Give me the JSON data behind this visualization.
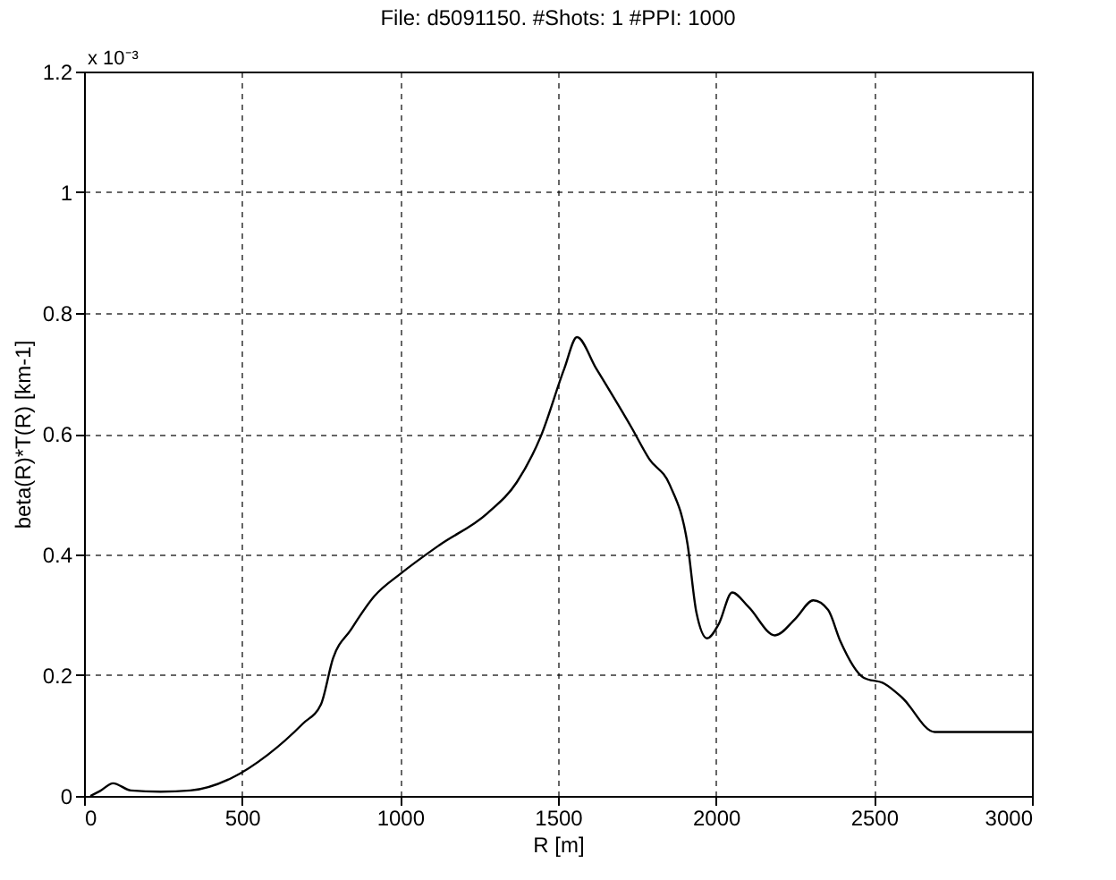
{
  "chart_data": {
    "type": "line",
    "title": "File: d5091150. #Shots: 1 #PPI: 1000",
    "xlabel": "R [m]",
    "ylabel": "beta(R)*T(R) [km-1]",
    "annotations": [
      "x 10⁻³"
    ],
    "x": [
      20,
      50,
      92,
      148,
      242,
      336,
      468,
      581,
      693,
      750,
      788,
      844,
      919,
      1004,
      1126,
      1276,
      1370,
      1445,
      1520,
      1560,
      1621,
      1733,
      1789,
      1854,
      1910,
      1938,
      1972,
      2009,
      2051,
      2103,
      2187,
      2252,
      2308,
      2355,
      2393,
      2467,
      2533,
      2589,
      2692,
      3000
    ],
    "series": [
      {
        "color": "#000000",
        "values": [
          0.0,
          0.008,
          0.021,
          0.009,
          0.007,
          0.009,
          0.03,
          0.068,
          0.12,
          0.152,
          0.228,
          0.275,
          0.331,
          0.369,
          0.416,
          0.468,
          0.52,
          0.595,
          0.708,
          0.76,
          0.708,
          0.61,
          0.558,
          0.515,
          0.417,
          0.304,
          0.261,
          0.285,
          0.337,
          0.313,
          0.266,
          0.294,
          0.324,
          0.308,
          0.257,
          0.196,
          0.186,
          0.163,
          0.106,
          0.106
        ]
      }
    ],
    "xlim": [
      0,
      3000
    ],
    "xticks": [
      0,
      500,
      1000,
      1500,
      2000,
      2500,
      3000
    ],
    "ylim": [
      0,
      1.2
    ],
    "yticks": [
      0,
      0.2,
      0.4,
      0.6,
      0.8,
      1,
      1.2
    ],
    "grid": true,
    "line_style": "solid",
    "marker": "none"
  }
}
